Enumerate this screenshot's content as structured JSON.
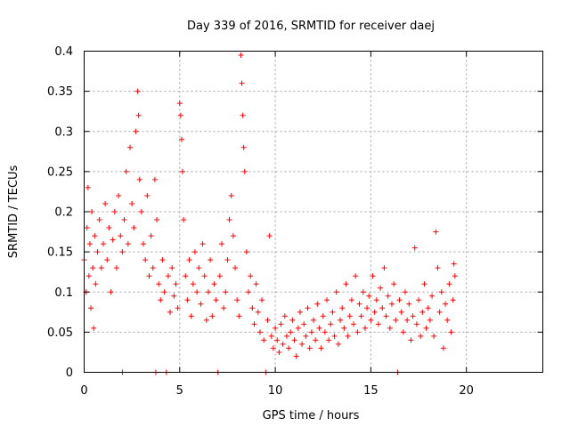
{
  "chart_data": {
    "type": "scatter",
    "title": "Day 339 of 2016, SRMTID for receiver daej",
    "xlabel": "GPS time / hours",
    "ylabel": "SRMTID / TECUs",
    "xlim": [
      0,
      24
    ],
    "ylim": [
      0,
      0.4
    ],
    "xticks": [
      0,
      5,
      10,
      15,
      20
    ],
    "yticks": [
      0,
      0.05,
      0.1,
      0.15,
      0.2,
      0.25,
      0.3,
      0.35,
      0.4
    ],
    "xtick_labels": [
      "0",
      "5",
      "10",
      "15",
      "20"
    ],
    "ytick_labels": [
      "0",
      "0.05",
      "0.1",
      "0.15",
      "0.2",
      "0.25",
      "0.3",
      "0.35",
      "0.4"
    ],
    "grid": true,
    "legend": "none",
    "marker": "plus",
    "color": "#ff0000",
    "series": [
      {
        "values": [
          [
            0.0,
            0.14
          ],
          [
            0.1,
            0.1
          ],
          [
            0.15,
            0.18
          ],
          [
            0.2,
            0.23
          ],
          [
            0.25,
            0.12
          ],
          [
            0.3,
            0.16
          ],
          [
            0.35,
            0.08
          ],
          [
            0.4,
            0.2
          ],
          [
            0.45,
            0.13
          ],
          [
            0.5,
            0.055
          ],
          [
            0.55,
            0.17
          ],
          [
            0.6,
            0.11
          ],
          [
            0.7,
            0.15
          ],
          [
            0.8,
            0.19
          ],
          [
            0.9,
            0.13
          ],
          [
            1.0,
            0.16
          ],
          [
            1.1,
            0.21
          ],
          [
            1.2,
            0.14
          ],
          [
            1.3,
            0.18
          ],
          [
            1.4,
            0.1
          ],
          [
            1.5,
            0.165
          ],
          [
            1.6,
            0.2
          ],
          [
            1.7,
            0.13
          ],
          [
            1.8,
            0.22
          ],
          [
            1.9,
            0.17
          ],
          [
            2.0,
            0.15
          ],
          [
            2.0,
            0.0
          ],
          [
            2.1,
            0.19
          ],
          [
            2.2,
            0.25
          ],
          [
            2.3,
            0.16
          ],
          [
            2.4,
            0.28
          ],
          [
            2.5,
            0.21
          ],
          [
            2.6,
            0.18
          ],
          [
            2.7,
            0.3
          ],
          [
            2.8,
            0.35
          ],
          [
            2.85,
            0.32
          ],
          [
            2.9,
            0.24
          ],
          [
            3.0,
            0.2
          ],
          [
            3.1,
            0.16
          ],
          [
            3.2,
            0.14
          ],
          [
            3.3,
            0.22
          ],
          [
            3.4,
            0.12
          ],
          [
            3.5,
            0.17
          ],
          [
            3.6,
            0.13
          ],
          [
            3.7,
            0.24
          ],
          [
            3.75,
            0.0
          ],
          [
            3.8,
            0.19
          ],
          [
            3.9,
            0.11
          ],
          [
            4.0,
            0.09
          ],
          [
            4.1,
            0.14
          ],
          [
            4.2,
            0.1
          ],
          [
            4.3,
            0.0
          ],
          [
            4.4,
            0.12
          ],
          [
            4.5,
            0.075
          ],
          [
            4.6,
            0.13
          ],
          [
            4.7,
            0.095
          ],
          [
            4.8,
            0.11
          ],
          [
            4.9,
            0.08
          ],
          [
            5.0,
            0.335
          ],
          [
            5.05,
            0.32
          ],
          [
            5.1,
            0.29
          ],
          [
            5.15,
            0.25
          ],
          [
            5.2,
            0.19
          ],
          [
            5.3,
            0.12
          ],
          [
            5.4,
            0.09
          ],
          [
            5.5,
            0.14
          ],
          [
            5.6,
            0.07
          ],
          [
            5.7,
            0.11
          ],
          [
            5.8,
            0.15
          ],
          [
            5.9,
            0.1
          ],
          [
            6.0,
            0.13
          ],
          [
            6.1,
            0.085
          ],
          [
            6.2,
            0.16
          ],
          [
            6.3,
            0.12
          ],
          [
            6.4,
            0.065
          ],
          [
            6.5,
            0.1
          ],
          [
            6.6,
            0.14
          ],
          [
            6.7,
            0.07
          ],
          [
            6.8,
            0.11
          ],
          [
            6.9,
            0.09
          ],
          [
            7.0,
            0.0
          ],
          [
            7.1,
            0.12
          ],
          [
            7.2,
            0.16
          ],
          [
            7.3,
            0.08
          ],
          [
            7.4,
            0.1
          ],
          [
            7.5,
            0.14
          ],
          [
            7.6,
            0.19
          ],
          [
            7.7,
            0.22
          ],
          [
            7.8,
            0.17
          ],
          [
            7.9,
            0.13
          ],
          [
            8.0,
            0.09
          ],
          [
            8.1,
            0.07
          ],
          [
            8.2,
            0.395
          ],
          [
            8.25,
            0.36
          ],
          [
            8.3,
            0.32
          ],
          [
            8.35,
            0.28
          ],
          [
            8.4,
            0.25
          ],
          [
            8.5,
            0.15
          ],
          [
            8.6,
            0.1
          ],
          [
            8.7,
            0.12
          ],
          [
            8.8,
            0.08
          ],
          [
            8.9,
            0.06
          ],
          [
            9.0,
            0.11
          ],
          [
            9.1,
            0.075
          ],
          [
            9.2,
            0.05
          ],
          [
            9.3,
            0.09
          ],
          [
            9.4,
            0.04
          ],
          [
            9.5,
            0.0
          ],
          [
            9.6,
            0.065
          ],
          [
            9.7,
            0.17
          ],
          [
            9.8,
            0.045
          ],
          [
            9.9,
            0.03
          ],
          [
            10.0,
            0.055
          ],
          [
            10.1,
            0.04
          ],
          [
            10.2,
            0.025
          ],
          [
            10.3,
            0.06
          ],
          [
            10.4,
            0.035
          ],
          [
            10.5,
            0.07
          ],
          [
            10.6,
            0.045
          ],
          [
            10.7,
            0.03
          ],
          [
            10.8,
            0.05
          ],
          [
            10.9,
            0.065
          ],
          [
            11.0,
            0.04
          ],
          [
            11.1,
            0.02
          ],
          [
            11.2,
            0.055
          ],
          [
            11.3,
            0.075
          ],
          [
            11.4,
            0.035
          ],
          [
            11.5,
            0.06
          ],
          [
            11.6,
            0.045
          ],
          [
            11.7,
            0.08
          ],
          [
            11.8,
            0.03
          ],
          [
            11.9,
            0.05
          ],
          [
            12.0,
            0.065
          ],
          [
            12.1,
            0.04
          ],
          [
            12.2,
            0.085
          ],
          [
            12.3,
            0.055
          ],
          [
            12.4,
            0.03
          ],
          [
            12.5,
            0.07
          ],
          [
            12.6,
            0.05
          ],
          [
            12.7,
            0.09
          ],
          [
            12.8,
            0.04
          ],
          [
            12.9,
            0.06
          ],
          [
            13.0,
            0.075
          ],
          [
            13.1,
            0.045
          ],
          [
            13.2,
            0.1
          ],
          [
            13.3,
            0.035
          ],
          [
            13.4,
            0.065
          ],
          [
            13.5,
            0.08
          ],
          [
            13.6,
            0.055
          ],
          [
            13.7,
            0.11
          ],
          [
            13.8,
            0.045
          ],
          [
            13.9,
            0.07
          ],
          [
            14.0,
            0.09
          ],
          [
            14.1,
            0.06
          ],
          [
            14.2,
            0.12
          ],
          [
            14.3,
            0.05
          ],
          [
            14.4,
            0.085
          ],
          [
            14.5,
            0.07
          ],
          [
            14.6,
            0.1
          ],
          [
            14.7,
            0.055
          ],
          [
            14.8,
            0.08
          ],
          [
            14.9,
            0.095
          ],
          [
            15.0,
            0.065
          ],
          [
            15.1,
            0.12
          ],
          [
            15.2,
            0.075
          ],
          [
            15.3,
            0.09
          ],
          [
            15.4,
            0.06
          ],
          [
            15.5,
            0.105
          ],
          [
            15.6,
            0.08
          ],
          [
            15.7,
            0.13
          ],
          [
            15.8,
            0.07
          ],
          [
            15.9,
            0.095
          ],
          [
            16.0,
            0.055
          ],
          [
            16.1,
            0.085
          ],
          [
            16.2,
            0.11
          ],
          [
            16.3,
            0.065
          ],
          [
            16.4,
            0.0
          ],
          [
            16.5,
            0.09
          ],
          [
            16.6,
            0.075
          ],
          [
            16.7,
            0.05
          ],
          [
            16.8,
            0.1
          ],
          [
            16.9,
            0.065
          ],
          [
            17.0,
            0.085
          ],
          [
            17.1,
            0.04
          ],
          [
            17.2,
            0.07
          ],
          [
            17.3,
            0.155
          ],
          [
            17.4,
            0.06
          ],
          [
            17.5,
            0.09
          ],
          [
            17.6,
            0.045
          ],
          [
            17.7,
            0.075
          ],
          [
            17.8,
            0.11
          ],
          [
            17.9,
            0.055
          ],
          [
            18.0,
            0.08
          ],
          [
            18.1,
            0.065
          ],
          [
            18.2,
            0.095
          ],
          [
            18.3,
            0.045
          ],
          [
            18.4,
            0.175
          ],
          [
            18.5,
            0.13
          ],
          [
            18.6,
            0.075
          ],
          [
            18.7,
            0.1
          ],
          [
            18.8,
            0.03
          ],
          [
            18.9,
            0.085
          ],
          [
            19.0,
            0.065
          ],
          [
            19.1,
            0.11
          ],
          [
            19.2,
            0.05
          ],
          [
            19.3,
            0.09
          ],
          [
            19.35,
            0.135
          ],
          [
            19.4,
            0.12
          ]
        ]
      }
    ]
  }
}
